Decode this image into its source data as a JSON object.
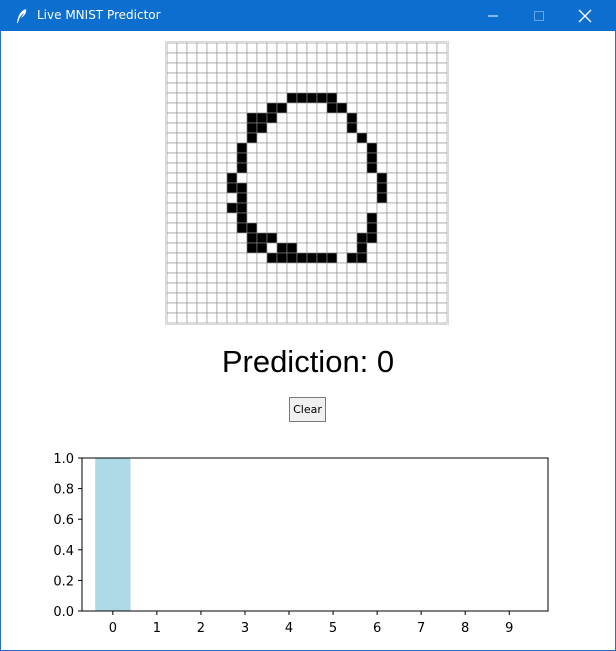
{
  "window": {
    "title": "Live MNIST Predictor",
    "titlebar_color": "#0c6fcf",
    "icons": [
      "feather-app-icon",
      "minimize-icon",
      "maximize-icon",
      "close-icon"
    ]
  },
  "drawing_grid": {
    "rows": 28,
    "cols": 28,
    "filled_cells": [
      [
        5,
        12
      ],
      [
        5,
        13
      ],
      [
        5,
        14
      ],
      [
        5,
        15
      ],
      [
        5,
        16
      ],
      [
        6,
        10
      ],
      [
        6,
        11
      ],
      [
        6,
        16
      ],
      [
        6,
        17
      ],
      [
        7,
        8
      ],
      [
        7,
        9
      ],
      [
        7,
        10
      ],
      [
        7,
        18
      ],
      [
        8,
        8
      ],
      [
        8,
        9
      ],
      [
        8,
        18
      ],
      [
        9,
        8
      ],
      [
        9,
        19
      ],
      [
        10,
        7
      ],
      [
        10,
        20
      ],
      [
        11,
        7
      ],
      [
        11,
        20
      ],
      [
        12,
        7
      ],
      [
        12,
        20
      ],
      [
        13,
        6
      ],
      [
        13,
        21
      ],
      [
        14,
        6
      ],
      [
        14,
        7
      ],
      [
        14,
        21
      ],
      [
        15,
        7
      ],
      [
        15,
        21
      ],
      [
        16,
        6
      ],
      [
        16,
        7
      ],
      [
        17,
        7
      ],
      [
        17,
        20
      ],
      [
        18,
        7
      ],
      [
        18,
        8
      ],
      [
        18,
        20
      ],
      [
        19,
        8
      ],
      [
        19,
        9
      ],
      [
        19,
        10
      ],
      [
        19,
        19
      ],
      [
        19,
        20
      ],
      [
        20,
        8
      ],
      [
        20,
        9
      ],
      [
        20,
        11
      ],
      [
        20,
        12
      ],
      [
        20,
        19
      ],
      [
        21,
        10
      ],
      [
        21,
        11
      ],
      [
        21,
        12
      ],
      [
        21,
        13
      ],
      [
        21,
        14
      ],
      [
        21,
        15
      ],
      [
        21,
        16
      ],
      [
        21,
        18
      ],
      [
        21,
        19
      ]
    ],
    "cell_color": "#000000",
    "grid_line_color": "#8a8a8a"
  },
  "prediction": {
    "label": "Prediction: 0"
  },
  "clear_button": {
    "label": "Clear"
  },
  "chart_data": {
    "type": "bar",
    "categories": [
      "0",
      "1",
      "2",
      "3",
      "4",
      "5",
      "6",
      "7",
      "8",
      "9"
    ],
    "values": [
      1.0,
      0,
      0,
      0,
      0,
      0,
      0,
      0,
      0,
      0
    ],
    "ylim": [
      0,
      1.0
    ],
    "yticks": [
      "0.0",
      "0.2",
      "0.4",
      "0.6",
      "0.8",
      "1.0"
    ],
    "xlabel": "",
    "ylabel": "",
    "title": "",
    "bar_color": "#add8e6",
    "grid": false
  }
}
